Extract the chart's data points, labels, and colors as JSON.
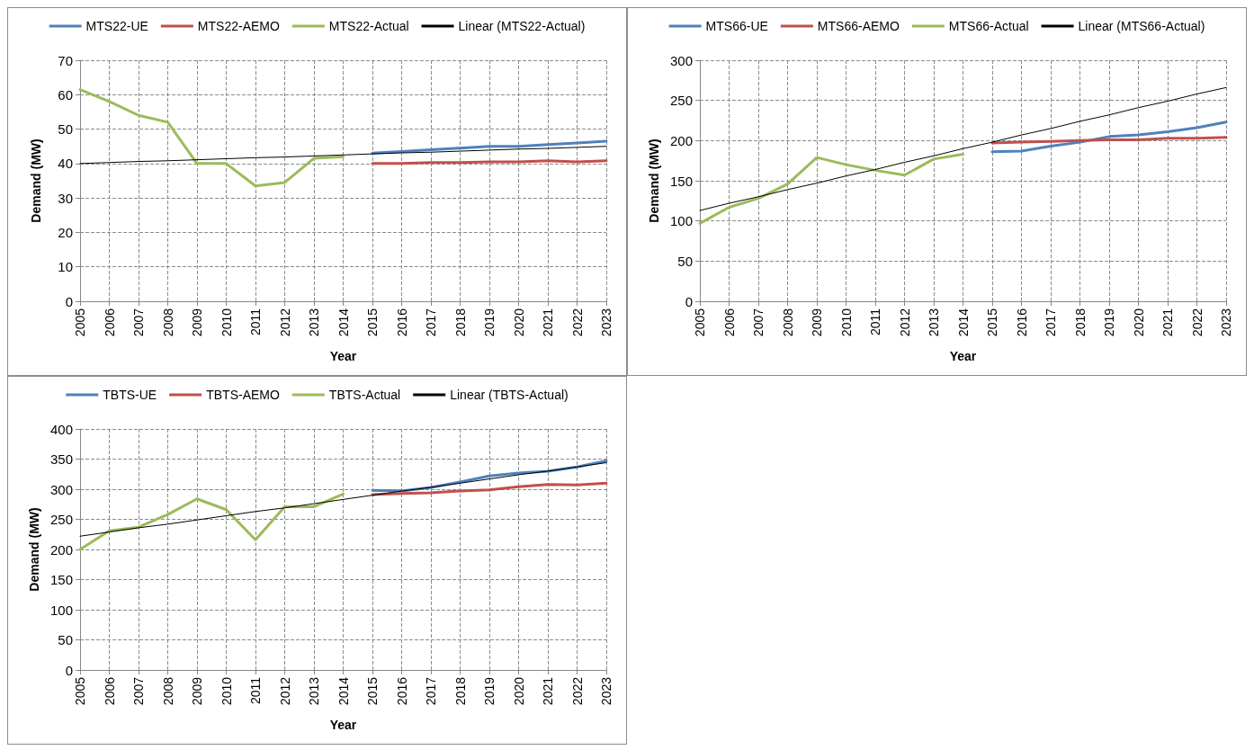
{
  "chart_data": [
    {
      "type": "line",
      "xlabel": "Year",
      "ylabel": "Demand (MW)",
      "categories": [
        "2005",
        "2006",
        "2007",
        "2008",
        "2009",
        "2010",
        "2011",
        "2012",
        "2013",
        "2014",
        "2015",
        "2016",
        "2017",
        "2018",
        "2019",
        "2020",
        "2021",
        "2022",
        "2023"
      ],
      "ylim": [
        0,
        70
      ],
      "yticks": [
        0,
        10,
        20,
        30,
        40,
        50,
        60,
        70
      ],
      "grid": true,
      "legend": "top",
      "marker": "none",
      "line_style": "solid",
      "series": [
        {
          "name": "MTS22-UE",
          "color": "#4f81bd",
          "values": [
            null,
            null,
            null,
            null,
            null,
            null,
            null,
            null,
            null,
            null,
            43,
            43.5,
            44,
            44.5,
            45,
            45,
            45.5,
            46,
            46.5
          ]
        },
        {
          "name": "MTS22-AEMO",
          "color": "#c0504d",
          "values": [
            null,
            null,
            null,
            null,
            null,
            null,
            null,
            null,
            null,
            null,
            40,
            40,
            40.3,
            40.3,
            40.5,
            40.5,
            40.8,
            40.5,
            40.8
          ]
        },
        {
          "name": "MTS22-Actual",
          "color": "#9bbb59",
          "values": [
            61.5,
            58,
            54,
            52,
            40,
            40,
            33.5,
            34.5,
            41.5,
            42,
            null,
            null,
            null,
            null,
            null,
            null,
            null,
            null,
            null
          ]
        },
        {
          "name": "Linear (MTS22-Actual)",
          "color": "#000000",
          "values": [
            40,
            40.3,
            40.6,
            40.8,
            41.1,
            41.4,
            41.7,
            41.9,
            42.2,
            42.5,
            42.8,
            43.1,
            43.3,
            43.6,
            43.9,
            44.2,
            44.4,
            44.7,
            45
          ]
        }
      ]
    },
    {
      "type": "line",
      "xlabel": "Year",
      "ylabel": "Demand (MW)",
      "categories": [
        "2005",
        "2006",
        "2007",
        "2008",
        "2009",
        "2010",
        "2011",
        "2012",
        "2013",
        "2014",
        "2015",
        "2016",
        "2017",
        "2018",
        "2019",
        "2020",
        "2021",
        "2022",
        "2023"
      ],
      "ylim": [
        0,
        300
      ],
      "yticks": [
        0,
        50,
        100,
        150,
        200,
        250,
        300
      ],
      "grid": true,
      "legend": "top",
      "marker": "none",
      "line_style": "solid",
      "series": [
        {
          "name": "MTS66-UE",
          "color": "#4f81bd",
          "values": [
            null,
            null,
            null,
            null,
            null,
            null,
            null,
            null,
            null,
            null,
            186,
            187,
            193,
            198,
            205,
            207,
            211,
            216,
            223
          ]
        },
        {
          "name": "MTS66-AEMO",
          "color": "#c0504d",
          "values": [
            null,
            null,
            null,
            null,
            null,
            null,
            null,
            null,
            null,
            null,
            197,
            198,
            199,
            200,
            201,
            201,
            203,
            203,
            204
          ]
        },
        {
          "name": "MTS66-Actual",
          "color": "#9bbb59",
          "values": [
            97,
            117,
            128,
            146,
            179,
            170,
            163,
            157,
            177,
            183,
            null,
            null,
            null,
            null,
            null,
            null,
            null,
            null,
            null
          ]
        },
        {
          "name": "Linear (MTS66-Actual)",
          "color": "#000000",
          "values": [
            113,
            122,
            130,
            139,
            147,
            156,
            164,
            173,
            181,
            190,
            198,
            207,
            215,
            224,
            232,
            241,
            249,
            258,
            266
          ]
        }
      ]
    },
    {
      "type": "line",
      "xlabel": "Year",
      "ylabel": "Demand (MW)",
      "categories": [
        "2005",
        "2006",
        "2007",
        "2008",
        "2009",
        "2010",
        "2011",
        "2012",
        "2013",
        "2014",
        "2015",
        "2016",
        "2017",
        "2018",
        "2019",
        "2020",
        "2021",
        "2022",
        "2023"
      ],
      "ylim": [
        0,
        400
      ],
      "yticks": [
        0,
        50,
        100,
        150,
        200,
        250,
        300,
        350,
        400
      ],
      "grid": true,
      "legend": "top",
      "marker": "none",
      "line_style": "solid",
      "series": [
        {
          "name": "TBTS-UE",
          "color": "#4f81bd",
          "values": [
            null,
            null,
            null,
            null,
            null,
            null,
            null,
            null,
            null,
            null,
            298,
            297,
            303,
            312,
            322,
            327,
            330,
            337,
            347
          ]
        },
        {
          "name": "TBTS-AEMO",
          "color": "#c0504d",
          "values": [
            null,
            null,
            null,
            null,
            null,
            null,
            null,
            null,
            null,
            null,
            291,
            293,
            294,
            297,
            299,
            304,
            308,
            307,
            310
          ]
        },
        {
          "name": "TBTS-Actual",
          "color": "#9bbb59",
          "values": [
            200,
            231,
            237,
            258,
            284,
            266,
            216,
            271,
            271,
            292,
            null,
            null,
            null,
            null,
            null,
            null,
            null,
            null,
            null
          ]
        },
        {
          "name": "Linear (TBTS-Actual)",
          "color": "#000000",
          "values": [
            222,
            229,
            236,
            242,
            249,
            256,
            263,
            269,
            276,
            283,
            290,
            297,
            303,
            310,
            317,
            324,
            330,
            337,
            344
          ]
        }
      ]
    }
  ]
}
